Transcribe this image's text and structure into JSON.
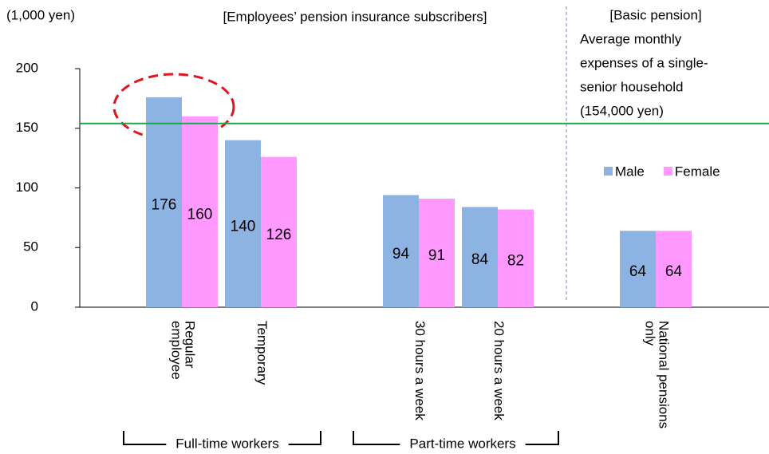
{
  "chart_data": {
    "type": "bar",
    "unit_label": "(1,000 yen)",
    "group_labels": [
      "[Employees’ pension insurance subscribers]",
      "[Basic pension]"
    ],
    "categories": [
      [
        "Regular",
        "employee"
      ],
      [
        "Temporary"
      ],
      null,
      [
        "30 hours a week"
      ],
      [
        "20 hours a week"
      ],
      null,
      [
        "National pensions",
        "only"
      ]
    ],
    "series": [
      {
        "name": "Male",
        "color": "#8db3e2",
        "values": [
          176,
          140,
          null,
          94,
          84,
          null,
          64
        ]
      },
      {
        "name": "Female",
        "color": "#ff99ff",
        "values": [
          160,
          126,
          null,
          91,
          82,
          null,
          64
        ]
      }
    ],
    "ylim": [
      0,
      200
    ],
    "yticks": [
      0,
      50,
      100,
      150,
      200
    ],
    "reference_line": {
      "value": 154,
      "color": "#1aa84a",
      "label": [
        "Average monthly",
        "expenses of a single-",
        "senior household",
        "(154,000 yen)"
      ]
    },
    "brackets": [
      "Full-time workers",
      "Part-time workers"
    ],
    "legend": "right"
  }
}
